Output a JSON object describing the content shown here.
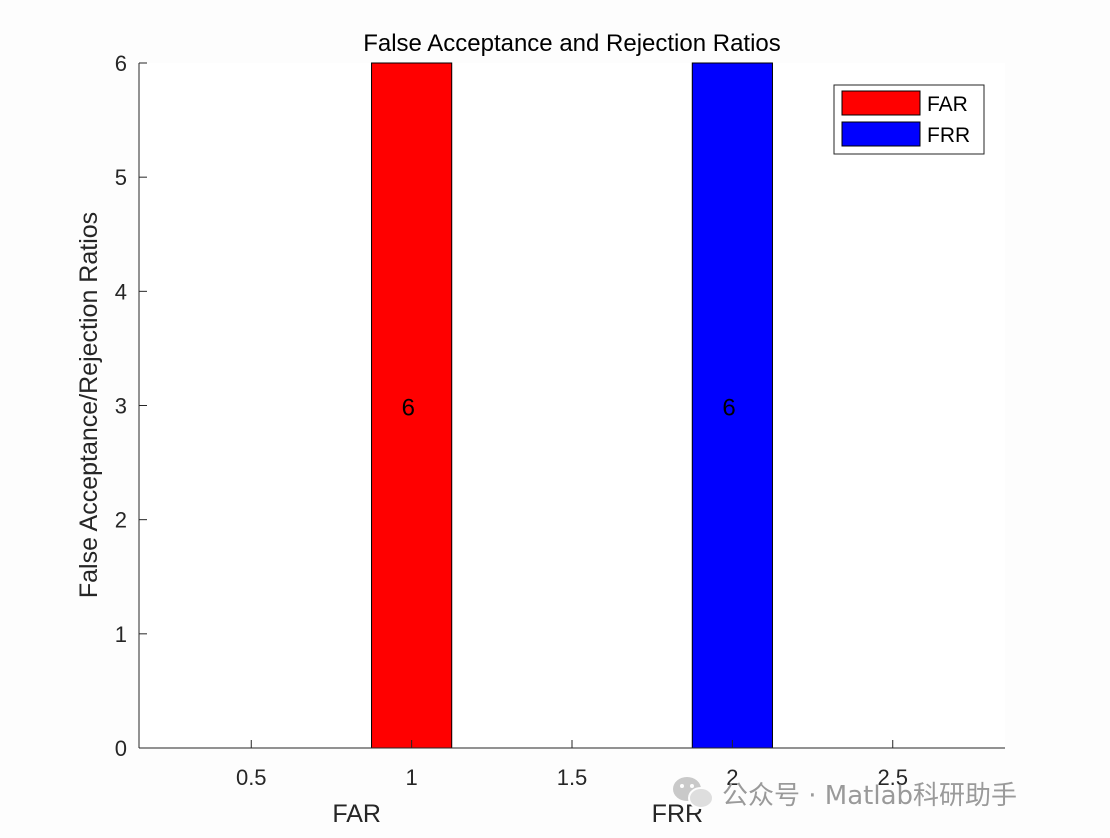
{
  "chart_data": {
    "type": "bar",
    "title": "False Acceptance and Rejection Ratios",
    "ylabel": "False Acceptance/Rejection Ratios",
    "xlim": [
      0.15,
      2.85
    ],
    "ylim": [
      0,
      6
    ],
    "xticks": [
      0.5,
      1,
      1.5,
      2,
      2.5
    ],
    "xtick_labels": [
      "0.5",
      "1",
      "1.5",
      "2",
      "2.5"
    ],
    "yticks": [
      0,
      1,
      2,
      3,
      4,
      5,
      6
    ],
    "ytick_labels": [
      "0",
      "1",
      "2",
      "3",
      "4",
      "5",
      "6"
    ],
    "categories": [
      "FAR",
      "FRR"
    ],
    "series": [
      {
        "name": "FAR",
        "x": 1,
        "value": 6,
        "color": "#ff0000",
        "label": "6"
      },
      {
        "name": "FRR",
        "x": 2,
        "value": 6,
        "color": "#0000ff",
        "label": "6"
      }
    ],
    "bar_width": 0.25,
    "legend_position": "top-right",
    "grid": false
  },
  "watermark": {
    "text": "公众号 · Matlab科研助手",
    "icon": "wechat-icon"
  }
}
